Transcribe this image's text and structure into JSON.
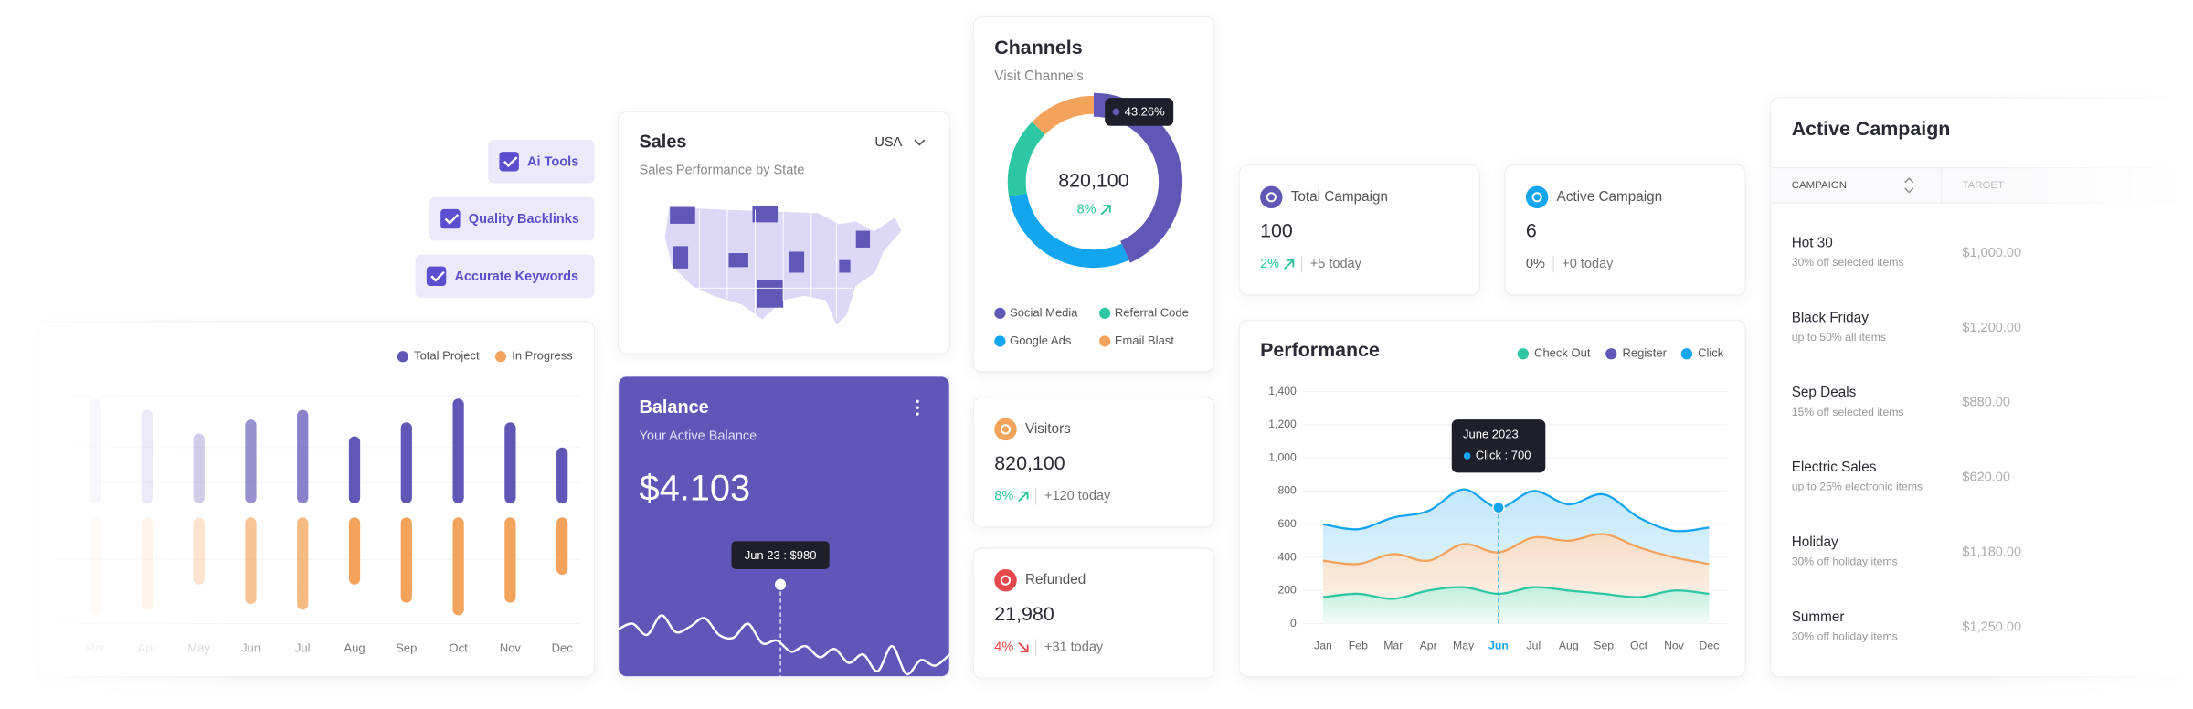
{
  "tags": [
    "Ai Tools",
    "Quality Backlinks",
    "Accurate Keywords"
  ],
  "projects": {
    "type": "bar",
    "categories": [
      "Mar",
      "Apr",
      "May",
      "Jun",
      "Jul",
      "Aug",
      "Sep",
      "Oct",
      "Nov",
      "Dec"
    ],
    "series": [
      {
        "name": "Total Project",
        "color": "#6157b7",
        "values": [
          75,
          67,
          50,
          60,
          67,
          48,
          58,
          75,
          58,
          40
        ]
      },
      {
        "name": "In Progress",
        "color": "#f3a35b",
        "values": [
          70,
          66,
          48,
          62,
          66,
          48,
          61,
          70,
          61,
          41
        ]
      }
    ],
    "ylim": [
      0,
      80
    ]
  },
  "sales": {
    "title": "Sales",
    "region": "USA",
    "subtitle": "Sales Performance by State"
  },
  "balance": {
    "title": "Balance",
    "subtitle": "Your Active Balance",
    "amount": "$4.103",
    "tooltip": "Jun 23 : $980",
    "chart": {
      "type": "line",
      "color": "#ffffff",
      "values": [
        34,
        38,
        30,
        44,
        32,
        36,
        42,
        30,
        28,
        38,
        24,
        26,
        18,
        22,
        14,
        20,
        10,
        16,
        4,
        22,
        2,
        12,
        8,
        16
      ],
      "ylim": [
        0,
        60
      ]
    }
  },
  "channels": {
    "title": "Channels",
    "subtitle": "Visit Channels",
    "total": "820,100",
    "change": "8%",
    "tooltip": "43.26%",
    "chart": {
      "type": "pie",
      "categories": [
        "Social Media",
        "Google Ads",
        "Referral Code",
        "Email Blast"
      ],
      "values": [
        43.26,
        29,
        15,
        12.74
      ],
      "colors": [
        "#6157b7",
        "#14a5ef",
        "#2ec7a3",
        "#f3a35b"
      ]
    }
  },
  "stats": [
    {
      "label": "Total Campaign",
      "value": "100",
      "change": "2%",
      "trend": "up",
      "today": "+5 today",
      "color": "#6157b7"
    },
    {
      "label": "Active Campaign",
      "value": "6",
      "change": "0%",
      "trend": "flat",
      "today": "+0 today",
      "color": "#14a5ef"
    },
    {
      "label": "Visitors",
      "value": "820,100",
      "change": "8%",
      "trend": "up",
      "today": "+120 today",
      "color": "#f3a35b"
    },
    {
      "label": "Refunded",
      "value": "21,980",
      "change": "4%",
      "trend": "down",
      "today": "+31 today",
      "color": "#e5484d"
    }
  ],
  "performance": {
    "type": "line",
    "title": "Performance",
    "categories": [
      "Jan",
      "Feb",
      "Mar",
      "Apr",
      "May",
      "Jun",
      "Jul",
      "Aug",
      "Sep",
      "Oct",
      "Nov",
      "Dec"
    ],
    "series": [
      {
        "name": "Check Out",
        "color": "#2ec7a3",
        "values": [
          160,
          180,
          150,
          200,
          220,
          180,
          220,
          200,
          180,
          160,
          200,
          180
        ]
      },
      {
        "name": "Register",
        "color": "#6157b7",
        "line_color": "#f3a35b",
        "values": [
          380,
          360,
          420,
          380,
          480,
          430,
          520,
          500,
          540,
          460,
          400,
          360
        ]
      },
      {
        "name": "Click",
        "color": "#14a5ef",
        "values": [
          600,
          570,
          640,
          680,
          810,
          700,
          800,
          720,
          780,
          640,
          560,
          580
        ]
      }
    ],
    "ylim": [
      0,
      1400
    ],
    "yticks": [
      0,
      200,
      400,
      600,
      800,
      {
        "value": 1000,
        "label": "1,000"
      },
      {
        "value": 1200,
        "label": "1,200"
      },
      {
        "value": 1400,
        "label": "1,400"
      }
    ],
    "grid": true,
    "tooltip": {
      "title": "June 2023",
      "label": "Click : 700"
    }
  },
  "campaigns": {
    "title": "Active Campaign",
    "columns": [
      "CAMPAIGN",
      "TARGET"
    ],
    "rows": [
      [
        "Hot 30",
        "30% off selected items",
        "$1,000.00"
      ],
      [
        "Black Friday",
        "up to 50% all items",
        "$1,200.00"
      ],
      [
        "Sep Deals",
        "15% off selected items",
        "$880.00"
      ],
      [
        "Electric Sales",
        "up to 25% electronic items",
        "$620.00"
      ],
      [
        "Holiday",
        "30% off holiday items",
        "$1,180.00"
      ],
      [
        "Summer",
        "30% off holiday items",
        "$1,250.00"
      ]
    ]
  }
}
